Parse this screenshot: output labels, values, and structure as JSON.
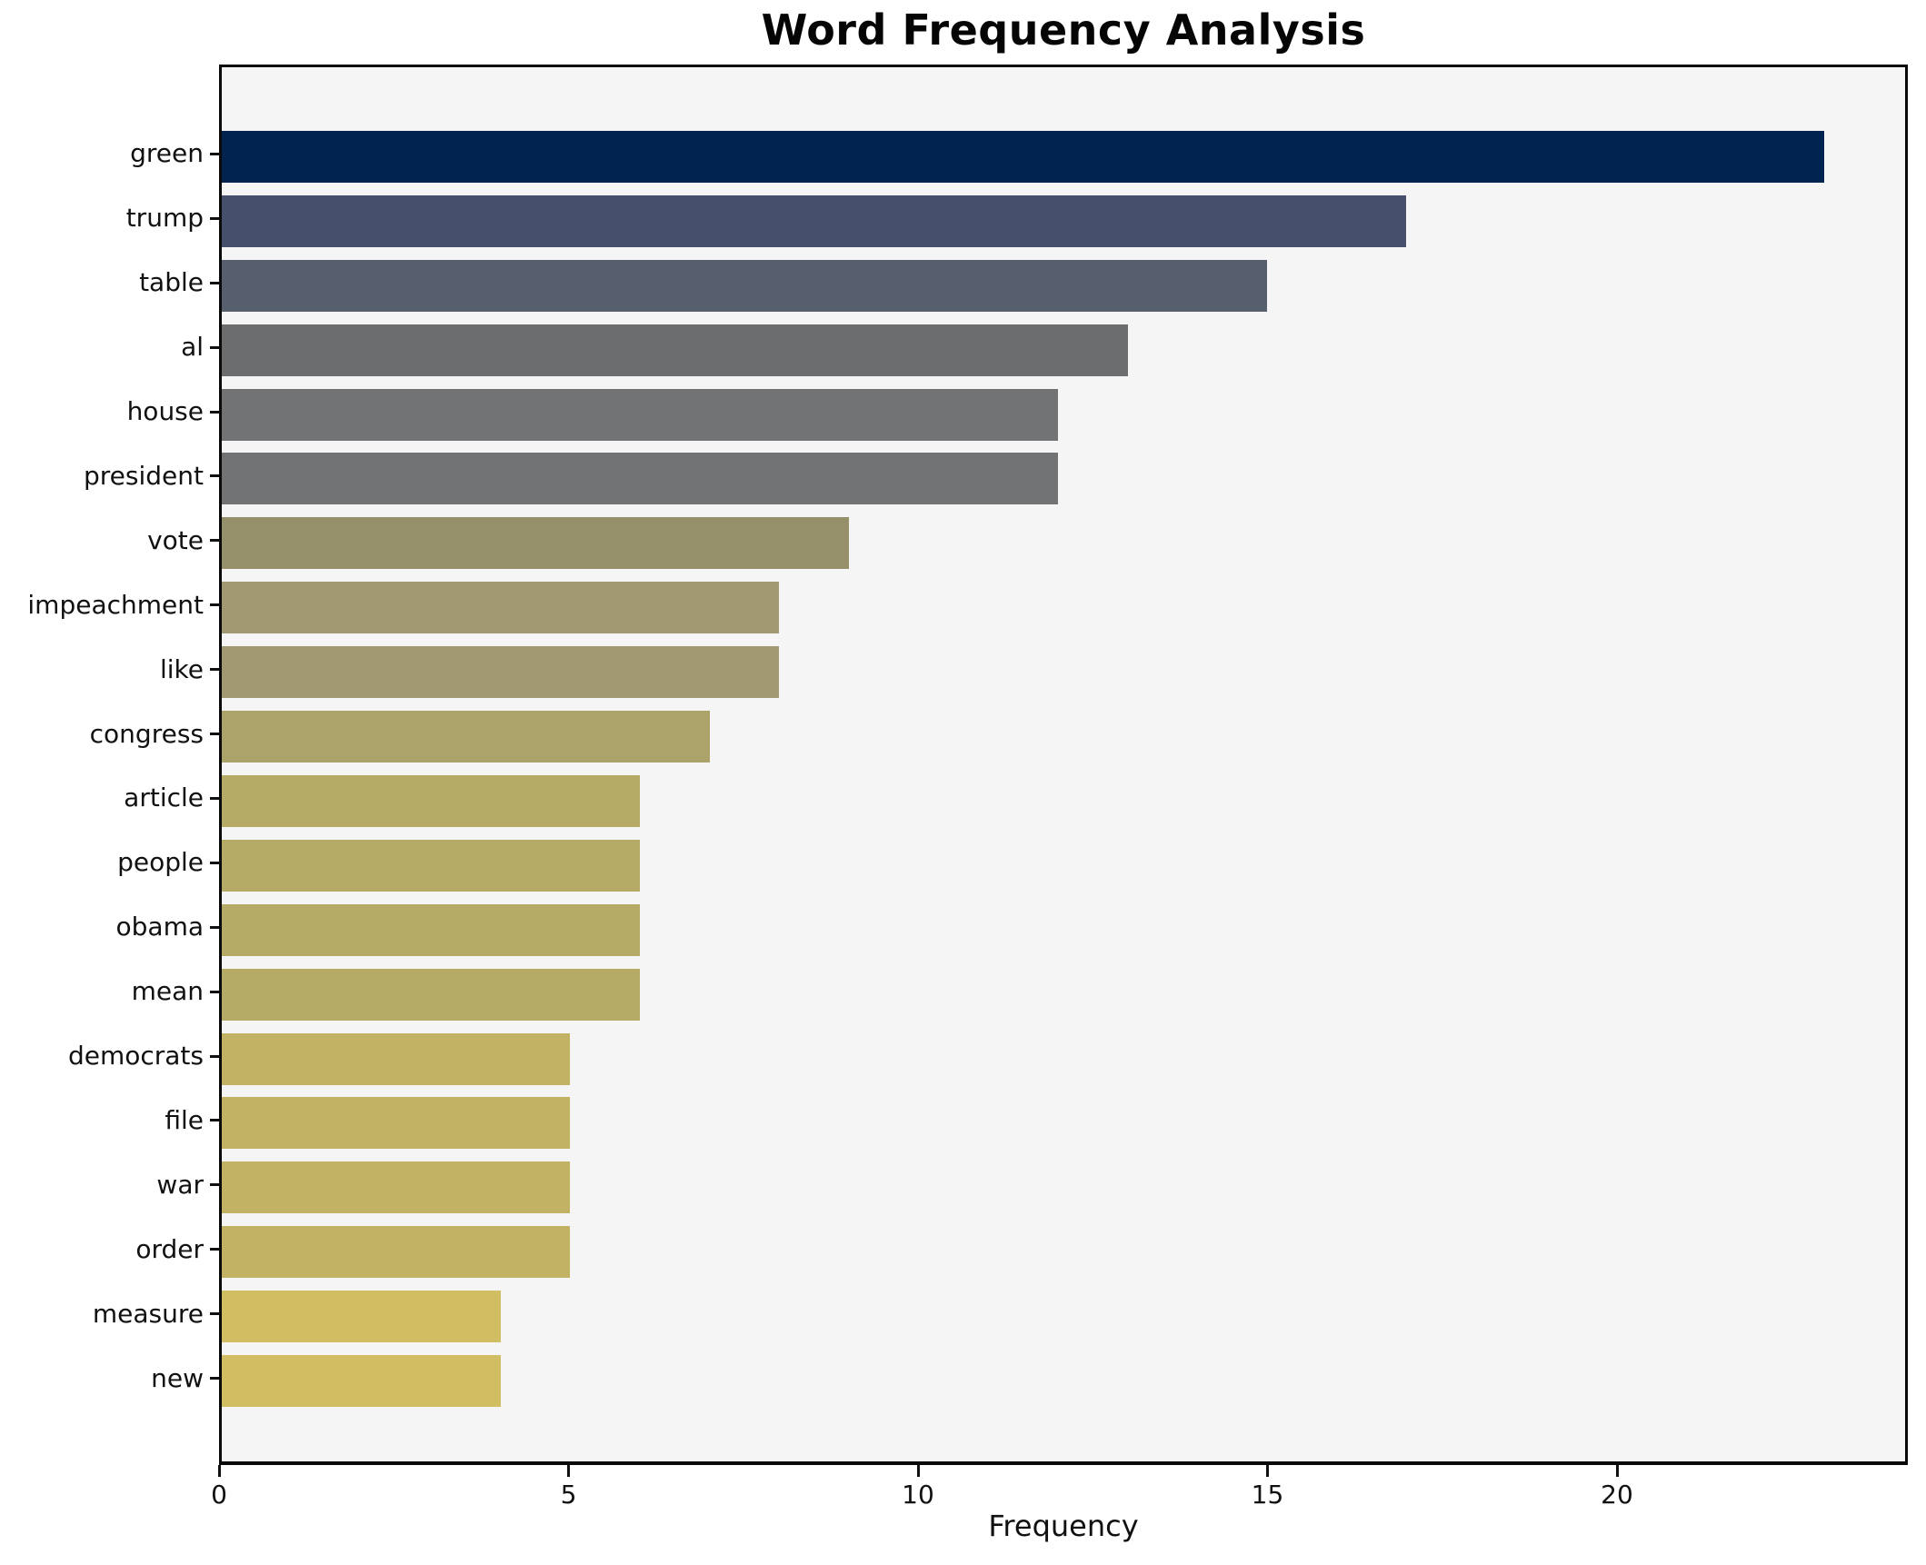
{
  "chart_data": {
    "type": "bar",
    "orientation": "horizontal",
    "title": "Word Frequency Analysis",
    "xlabel": "Frequency",
    "ylabel": "",
    "categories": [
      "green",
      "trump",
      "table",
      "al",
      "house",
      "president",
      "vote",
      "impeachment",
      "like",
      "congress",
      "article",
      "people",
      "obama",
      "mean",
      "democrats",
      "file",
      "war",
      "order",
      "measure",
      "new"
    ],
    "values": [
      23,
      17,
      15,
      13,
      12,
      12,
      9,
      8,
      8,
      7,
      6,
      6,
      6,
      6,
      5,
      5,
      5,
      5,
      4,
      4
    ],
    "bar_colors": [
      "#01234F",
      "#46506C",
      "#575E6E",
      "#6C6D6F",
      "#727375",
      "#727375",
      "#95906A",
      "#A09971",
      "#A09971",
      "#ACA36B",
      "#B5AB67",
      "#B5AB67",
      "#B5AB67",
      "#B5AB67",
      "#C2B263",
      "#C2B263",
      "#C2B263",
      "#C2B263",
      "#D1BD62",
      "#D1BD62"
    ],
    "x_ticks": [
      0,
      5,
      10,
      15,
      20
    ],
    "xlim": [
      0,
      24.16
    ],
    "grid": false,
    "legend": null,
    "colormap": "cividis"
  },
  "colors": {
    "figure_bg": "#FFFFFF",
    "axes_bg": "#F6F5F6",
    "spine": "#0A0A0A",
    "text": "#111111"
  }
}
